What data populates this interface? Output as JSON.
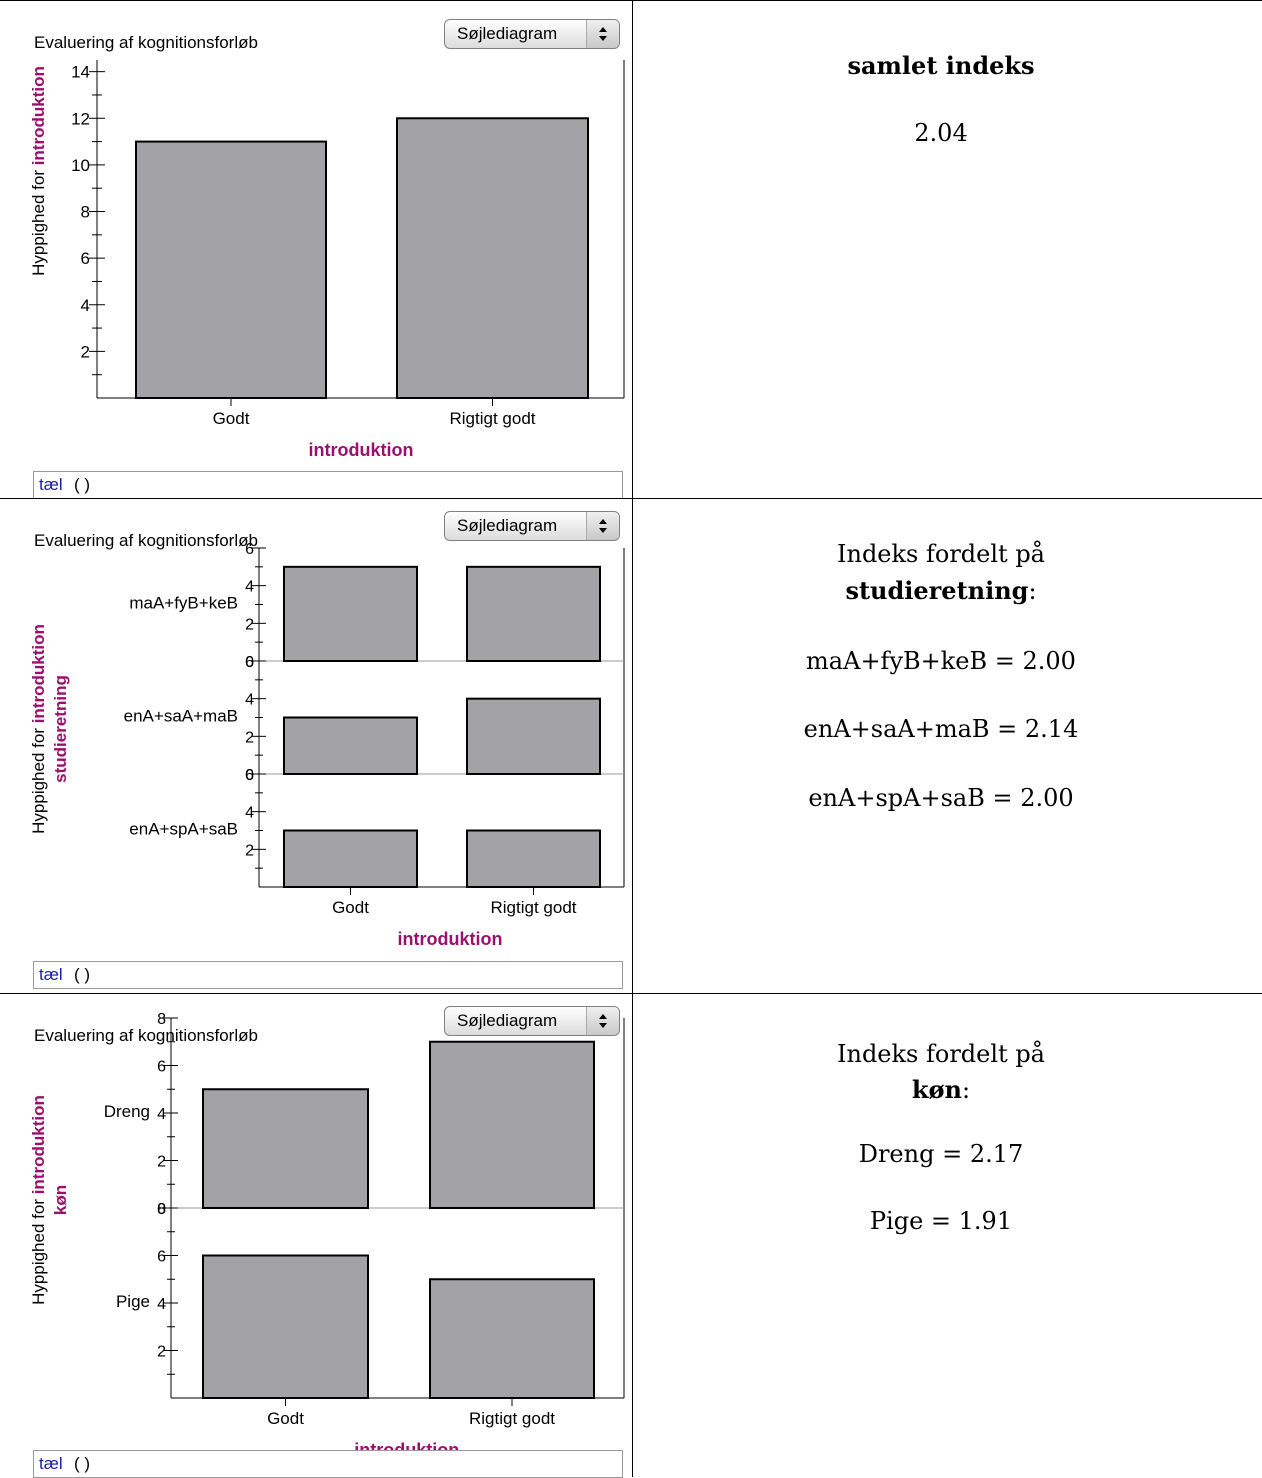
{
  "panels": [
    {
      "title": "Evaluering af kognitionsforløb",
      "dropdown": "Søjlediagram",
      "ylabel_pre": "Hyppighed for ",
      "ylabel_var": "introduktion",
      "xlabel": "introduktion",
      "formula_kw": "tæl",
      "formula_paren": "(  )"
    },
    {
      "title": "Evaluering af kognitionsforløb",
      "dropdown": "Søjlediagram",
      "ylabel_pre": "Hyppighed for ",
      "ylabel_var": "introduktion",
      "split_label": "studieretning",
      "xlabel": "introduktion",
      "formula_kw": "tæl",
      "formula_paren": "(  )"
    },
    {
      "title": "Evaluering af kognitionsforløb",
      "dropdown": "Søjlediagram",
      "ylabel_pre": "Hyppighed for ",
      "ylabel_var": "introduktion",
      "split_label": "køn",
      "xlabel": "introduktion",
      "formula_kw": "tæl",
      "formula_paren": "(  )"
    }
  ],
  "chart_data": [
    {
      "type": "bar",
      "categories": [
        "Godt",
        "Rigtigt godt"
      ],
      "values": [
        11,
        12
      ],
      "ylim": [
        0,
        14.5
      ],
      "yticks": [
        2,
        4,
        6,
        8,
        10,
        12,
        14
      ],
      "xlabel": "introduktion",
      "ylabel": "Hyppighed for introduktion"
    },
    {
      "type": "bar",
      "categories": [
        "Godt",
        "Rigtigt godt"
      ],
      "groups": [
        {
          "name": "maA+fyB+keB",
          "values": [
            5,
            5
          ]
        },
        {
          "name": "enA+saA+maB",
          "values": [
            3,
            4
          ]
        },
        {
          "name": "enA+spA+saB",
          "values": [
            3,
            3
          ]
        }
      ],
      "ylim": [
        0,
        6
      ],
      "tick_labels": [
        "0",
        "2",
        "4",
        "6"
      ],
      "xlabel": "introduktion",
      "ylabel": "Hyppighed for introduktion"
    },
    {
      "type": "bar",
      "categories": [
        "Godt",
        "Rigtigt godt"
      ],
      "groups": [
        {
          "name": "Dreng",
          "values": [
            5,
            7
          ]
        },
        {
          "name": "Pige",
          "values": [
            6,
            5
          ]
        }
      ],
      "ylim": [
        0,
        8
      ],
      "tick_labels": [
        "0",
        "2",
        "4",
        "6",
        "8"
      ],
      "xlabel": "introduktion",
      "ylabel": "Hyppighed for introduktion"
    }
  ],
  "right": {
    "r1_heading": "samlet indeks",
    "r1_value": "2.04",
    "r2_intro": "Indeks fordelt på",
    "r2_var": "studieretning",
    "r2_colon": ":",
    "r2_items": [
      "maA+fyB+keB = 2.00",
      "enA+saA+maB = 2.14",
      "enA+spA+saB = 2.00"
    ],
    "r3_intro": "Indeks fordelt på",
    "r3_var": "køn",
    "r3_colon": ":",
    "r3_items": [
      "Dreng = 2.17",
      "Pige = 1.91"
    ]
  },
  "colors": {
    "bar_fill": "#a3a3a6",
    "accent_label": "#9b0f6d",
    "formula_keyword": "#1a1aa6"
  }
}
